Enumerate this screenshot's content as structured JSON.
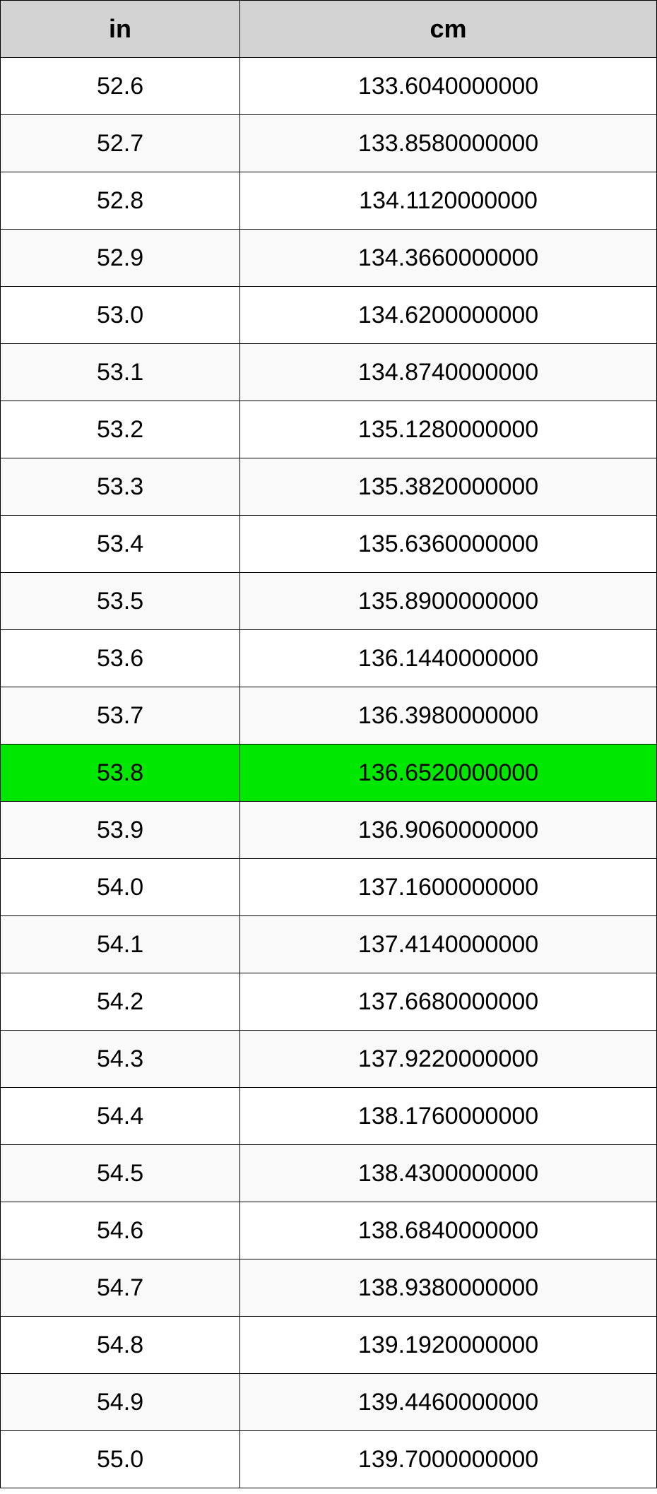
{
  "table": {
    "columns": [
      {
        "key": "in",
        "label": "in"
      },
      {
        "key": "cm",
        "label": "cm"
      }
    ],
    "highlight_row_index": 12,
    "header_bg": "#d3d3d3",
    "row_odd_bg": "#ffffff",
    "row_even_bg": "#f9f9f9",
    "highlight_bg": "#00e800",
    "border_color": "#000000",
    "font_size_header": 36,
    "font_size_cell": 34,
    "col_widths_pct": [
      36.5,
      63.5
    ],
    "rows": [
      {
        "in": "52.6",
        "cm": "133.6040000000"
      },
      {
        "in": "52.7",
        "cm": "133.8580000000"
      },
      {
        "in": "52.8",
        "cm": "134.1120000000"
      },
      {
        "in": "52.9",
        "cm": "134.3660000000"
      },
      {
        "in": "53.0",
        "cm": "134.6200000000"
      },
      {
        "in": "53.1",
        "cm": "134.8740000000"
      },
      {
        "in": "53.2",
        "cm": "135.1280000000"
      },
      {
        "in": "53.3",
        "cm": "135.3820000000"
      },
      {
        "in": "53.4",
        "cm": "135.6360000000"
      },
      {
        "in": "53.5",
        "cm": "135.8900000000"
      },
      {
        "in": "53.6",
        "cm": "136.1440000000"
      },
      {
        "in": "53.7",
        "cm": "136.3980000000"
      },
      {
        "in": "53.8",
        "cm": "136.6520000000"
      },
      {
        "in": "53.9",
        "cm": "136.9060000000"
      },
      {
        "in": "54.0",
        "cm": "137.1600000000"
      },
      {
        "in": "54.1",
        "cm": "137.4140000000"
      },
      {
        "in": "54.2",
        "cm": "137.6680000000"
      },
      {
        "in": "54.3",
        "cm": "137.9220000000"
      },
      {
        "in": "54.4",
        "cm": "138.1760000000"
      },
      {
        "in": "54.5",
        "cm": "138.4300000000"
      },
      {
        "in": "54.6",
        "cm": "138.6840000000"
      },
      {
        "in": "54.7",
        "cm": "138.9380000000"
      },
      {
        "in": "54.8",
        "cm": "139.1920000000"
      },
      {
        "in": "54.9",
        "cm": "139.4460000000"
      },
      {
        "in": "55.0",
        "cm": "139.7000000000"
      }
    ]
  }
}
